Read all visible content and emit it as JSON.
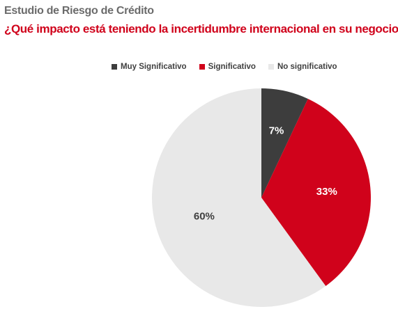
{
  "header": {
    "title": "Estudio de Riesgo de Crédito",
    "subtitle": "¿Qué impacto está teniendo la incertidumbre internacional en su negocio?"
  },
  "chart_data": {
    "type": "pie",
    "title": "¿Qué impacto está teniendo la incertidumbre internacional en su negocio?",
    "legend_position": "top",
    "slices": [
      {
        "name": "Muy Significativo",
        "value": 7,
        "label": "7%",
        "color": "#3d3d3d",
        "label_color": "#ffffff"
      },
      {
        "name": "Significativo",
        "value": 33,
        "label": "33%",
        "color": "#d0021b",
        "label_color": "#ffffff"
      },
      {
        "name": "No significativo",
        "value": 60,
        "label": "60%",
        "color": "#e8e8e8",
        "label_color": "#404040"
      }
    ]
  }
}
